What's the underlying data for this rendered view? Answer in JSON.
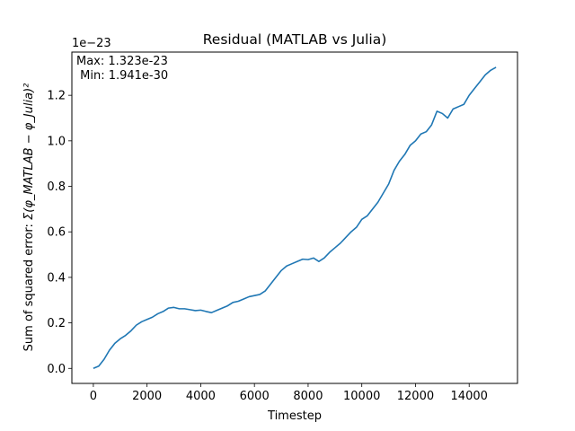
{
  "chart_data": {
    "type": "line",
    "title": "Residual (MATLAB vs Julia)",
    "xlabel": "Timestep",
    "ylabel_prefix": "Sum of squared error: ",
    "ylabel_math": "Σ(φ_MATLAB − φ_Julia)²",
    "y_offset_label": "1e−23",
    "y_scale": 1e-23,
    "annotation_lines": [
      "Max: 1.323e-23",
      " Min: 1.941e-30"
    ],
    "xlim": [
      -800,
      15800
    ],
    "ylim": [
      -0.066,
      1.39
    ],
    "xticks": [
      0,
      2000,
      4000,
      6000,
      8000,
      10000,
      12000,
      14000
    ],
    "xtick_labels": [
      "0",
      "2000",
      "4000",
      "6000",
      "8000",
      "10000",
      "12000",
      "14000"
    ],
    "yticks": [
      0.0,
      0.2,
      0.4,
      0.6,
      0.8,
      1.0,
      1.2
    ],
    "ytick_labels": [
      "0.0",
      "0.2",
      "0.4",
      "0.6",
      "0.8",
      "1.0",
      "1.2"
    ],
    "grid": false,
    "series": [
      {
        "color": "#1f77b4",
        "x": [
          0,
          200,
          400,
          600,
          800,
          1000,
          1200,
          1400,
          1600,
          1800,
          2000,
          2200,
          2400,
          2600,
          2800,
          3000,
          3200,
          3400,
          3600,
          3800,
          4000,
          4200,
          4400,
          4600,
          4800,
          5000,
          5200,
          5400,
          5600,
          5800,
          6000,
          6200,
          6400,
          6600,
          6800,
          7000,
          7200,
          7400,
          7600,
          7800,
          8000,
          8200,
          8400,
          8600,
          8800,
          9000,
          9200,
          9400,
          9600,
          9800,
          10000,
          10200,
          10400,
          10600,
          10800,
          11000,
          11200,
          11400,
          11600,
          11800,
          12000,
          12200,
          12400,
          12600,
          12800,
          13000,
          13200,
          13400,
          13600,
          13800,
          14000,
          14200,
          14400,
          14600,
          14800,
          15000
        ],
        "values": [
          0.0,
          0.01,
          0.04,
          0.08,
          0.11,
          0.13,
          0.145,
          0.165,
          0.19,
          0.205,
          0.215,
          0.225,
          0.24,
          0.25,
          0.265,
          0.268,
          0.262,
          0.262,
          0.258,
          0.254,
          0.256,
          0.25,
          0.245,
          0.255,
          0.265,
          0.275,
          0.29,
          0.295,
          0.305,
          0.315,
          0.32,
          0.325,
          0.34,
          0.37,
          0.4,
          0.43,
          0.45,
          0.46,
          0.47,
          0.48,
          0.478,
          0.485,
          0.47,
          0.485,
          0.51,
          0.53,
          0.55,
          0.575,
          0.6,
          0.62,
          0.655,
          0.67,
          0.7,
          0.73,
          0.77,
          0.81,
          0.87,
          0.91,
          0.94,
          0.98,
          1.0,
          1.03,
          1.04,
          1.07,
          1.13,
          1.12,
          1.1,
          1.14,
          1.15,
          1.16,
          1.2,
          1.23,
          1.26,
          1.29,
          1.31,
          1.323
        ]
      }
    ]
  }
}
